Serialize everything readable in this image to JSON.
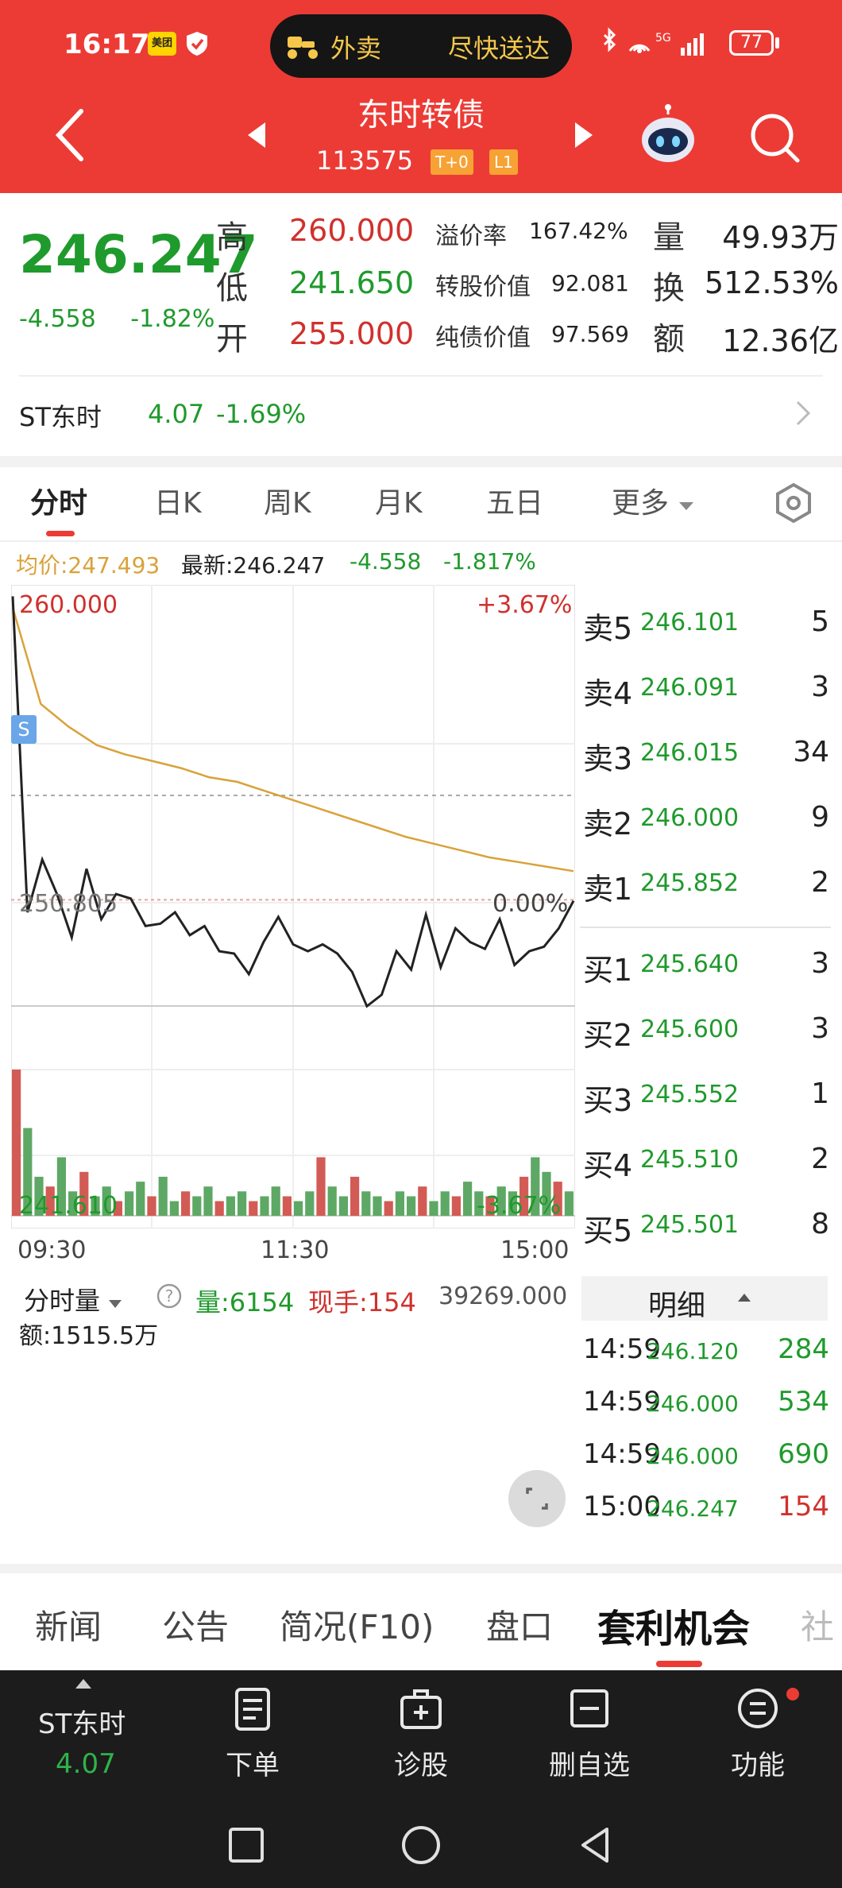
{
  "status": {
    "time": "16:17",
    "app_badge": "美团",
    "pill_left": "外卖",
    "pill_right": "尽快送达",
    "battery": "77"
  },
  "header": {
    "title": "东时转债",
    "code": "113575",
    "tag1": "T+0",
    "tag2": "L1"
  },
  "quote": {
    "price": "246.247",
    "change": "-4.558",
    "change_pct": "-1.82%",
    "high_label": "高",
    "high": "260.000",
    "low_label": "低",
    "low": "241.650",
    "open_label": "开",
    "open": "255.000",
    "premium_label": "溢价率",
    "premium": "167.42%",
    "conv_value_label": "转股价值",
    "conv_value": "92.081",
    "bond_value_label": "纯债价值",
    "bond_value": "97.569",
    "volume_label": "量",
    "volume": "49.93万",
    "turnover_label": "换",
    "turnover": "512.53%",
    "amount_label": "额",
    "amount": "12.36亿"
  },
  "underlying": {
    "name": "ST东时",
    "price": "4.07",
    "change_pct": "-1.69%"
  },
  "chart_tabs": [
    "分时",
    "日K",
    "周K",
    "月K",
    "五日",
    "更多"
  ],
  "legend": {
    "avg": "均价:247.493",
    "latest": "最新:246.247",
    "change": "-4.558",
    "change_pct": "-1.817%"
  },
  "chart_labels": {
    "top_price": "260.000",
    "top_pct": "+3.67%",
    "mid_price": "250.805",
    "mid_pct": "0.00%",
    "bottom_price": "241.610",
    "bottom_pct": "-3.67%",
    "marker": "S",
    "times": [
      "09:30",
      "11:30",
      "15:00"
    ]
  },
  "volume_panel": {
    "title": "分时量",
    "volume": "量:6154",
    "current_hand": "现手:154",
    "amount": "额:1515.5万",
    "max": "39269.000"
  },
  "order_book": {
    "asks": [
      {
        "label": "卖5",
        "price": "246.101",
        "qty": "5"
      },
      {
        "label": "卖4",
        "price": "246.091",
        "qty": "3"
      },
      {
        "label": "卖3",
        "price": "246.015",
        "qty": "34"
      },
      {
        "label": "卖2",
        "price": "246.000",
        "qty": "9"
      },
      {
        "label": "卖1",
        "price": "245.852",
        "qty": "2"
      }
    ],
    "bids": [
      {
        "label": "买1",
        "price": "245.640",
        "qty": "3"
      },
      {
        "label": "买2",
        "price": "245.600",
        "qty": "3"
      },
      {
        "label": "买3",
        "price": "245.552",
        "qty": "1"
      },
      {
        "label": "买4",
        "price": "245.510",
        "qty": "2"
      },
      {
        "label": "买5",
        "price": "245.501",
        "qty": "8"
      }
    ]
  },
  "trades": {
    "title": "明细",
    "rows": [
      {
        "time": "14:59",
        "price": "246.120",
        "qty": "284",
        "color": "#1f9a2c"
      },
      {
        "time": "14:59",
        "price": "246.000",
        "qty": "534",
        "color": "#1f9a2c"
      },
      {
        "time": "14:59",
        "price": "246.000",
        "qty": "690",
        "color": "#1f9a2c"
      },
      {
        "time": "15:00",
        "price": "246.247",
        "qty": "154",
        "color": "#d0312d"
      }
    ]
  },
  "info_tabs": [
    "新闻",
    "公告",
    "简况(F10)",
    "盘口",
    "套利机会",
    "社"
  ],
  "bottom_nav": {
    "stock_name": "ST东时",
    "stock_price": "4.07",
    "items": [
      "下单",
      "诊股",
      "删自选",
      "功能"
    ]
  },
  "colors": {
    "brand_red": "#ec3b35",
    "down_green": "#1f9a2c",
    "up_red": "#d0312d",
    "avg_line": "#d9a23a"
  },
  "chart_data": {
    "type": "line",
    "x_labels": [
      "09:30",
      "11:30",
      "15:00"
    ],
    "ylim": [
      241.61,
      260.0
    ],
    "reference": 250.805,
    "series": [
      {
        "name": "均价",
        "values": [
          259.0,
          254.8,
          253.8,
          253.0,
          252.6,
          252.3,
          252.0,
          251.6,
          251.4,
          251.0,
          250.6,
          250.2,
          249.8,
          249.4,
          249.0,
          248.7,
          248.4,
          248.1,
          247.9,
          247.7,
          247.5
        ]
      },
      {
        "name": "最新",
        "values": [
          259.5,
          245.7,
          248.0,
          246.5,
          244.6,
          247.6,
          245.4,
          246.5,
          246.3,
          245.1,
          245.2,
          245.7,
          244.7,
          245.1,
          244.0,
          243.9,
          243.0,
          244.4,
          245.5,
          244.3,
          244.0,
          244.3,
          243.9,
          243.1,
          241.6,
          242.1,
          244.0,
          243.2,
          245.6,
          243.3,
          245.0,
          244.4,
          244.1,
          245.4,
          243.4,
          244.0,
          244.2,
          245.0,
          246.2
        ]
      }
    ],
    "volume": [
      30,
      18,
      8,
      6,
      12,
      5,
      9,
      4,
      6,
      3,
      5,
      7,
      4,
      8,
      3,
      5,
      4,
      6,
      3,
      4,
      5,
      3,
      4,
      6,
      4,
      3,
      5,
      12,
      6,
      4,
      8,
      5,
      4,
      3,
      5,
      4,
      6,
      3,
      5,
      4,
      7,
      5,
      4,
      6,
      5,
      8,
      12,
      9,
      7,
      5
    ]
  }
}
